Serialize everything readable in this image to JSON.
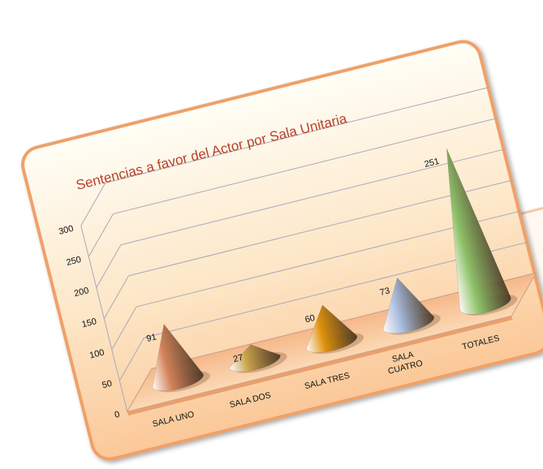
{
  "chart_data": {
    "type": "bar",
    "title": "Sentencias a favor del Actor por Sala Unitaria",
    "xlabel": "",
    "ylabel": "",
    "categories": [
      "SALA UNO",
      "SALA  DOS",
      "SALA TRES",
      "SALA CUATRO",
      "TOTALES"
    ],
    "category_lines": [
      [
        "SALA UNO"
      ],
      [
        "SALA  DOS"
      ],
      [
        "SALA TRES"
      ],
      [
        "SALA",
        "CUATRO"
      ],
      [
        "TOTALES"
      ]
    ],
    "values": [
      91,
      27,
      60,
      73,
      251
    ],
    "yticks": [
      "0",
      "50",
      "100",
      "150",
      "200",
      "250",
      "300"
    ],
    "ylim": [
      0,
      300
    ],
    "grid": true,
    "legend": "none",
    "colors": {
      "frame_border": "#f0a068",
      "background_top": "#fffef6",
      "background_bottom": "#fbc898",
      "grid": "#a9a9b9",
      "axis_text": "#111111",
      "title_text": "#b8402a",
      "cones": [
        "#d4835a",
        "#c9a24a",
        "#e0920c",
        "#a9bde0",
        "#8fc26a"
      ]
    }
  }
}
